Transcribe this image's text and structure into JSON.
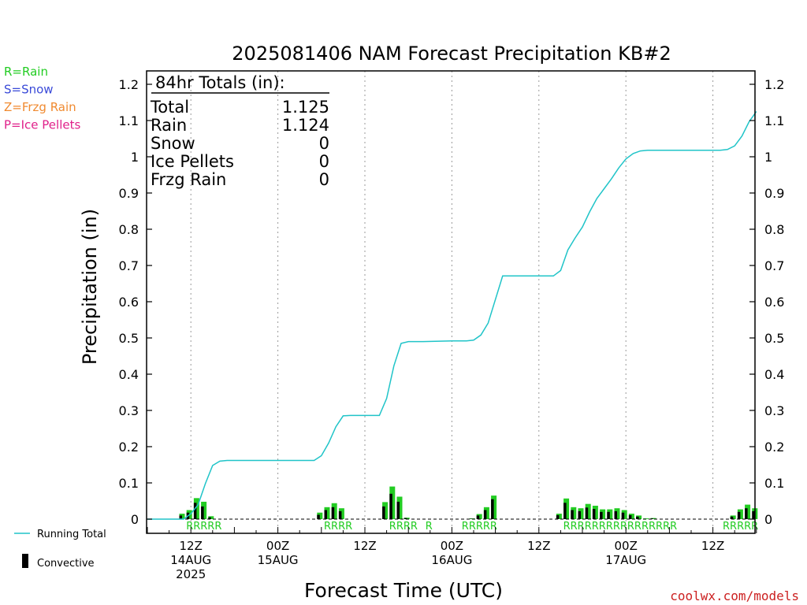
{
  "chart_data": {
    "type": "bar",
    "title": "2025081406 NAM Forecast Precipitation KB#2",
    "xlabel": "Forecast Time (UTC)",
    "ylabel": "Precipitation (in)",
    "ylim": [
      0,
      1.25
    ],
    "y_ticks": [
      0,
      0.1,
      0.2,
      0.3,
      0.4,
      0.5,
      0.6,
      0.7,
      0.8,
      0.9,
      1,
      1.1,
      1.2
    ],
    "y_tick_labels": [
      "0",
      "0.1",
      "0.2",
      "0.3",
      "0.4",
      "0.5",
      "0.6",
      "0.7",
      "0.8",
      "0.9",
      "1",
      "1.1",
      "1.2"
    ],
    "xlim_hours": [
      0,
      84
    ],
    "x_ticks": [
      {
        "hour": 6,
        "line1": "12Z",
        "line2": "14AUG",
        "line3": "2025"
      },
      {
        "hour": 18,
        "line1": "00Z",
        "line2": "15AUG",
        "line3": ""
      },
      {
        "hour": 30,
        "line1": "12Z",
        "line2": "",
        "line3": ""
      },
      {
        "hour": 42,
        "line1": "00Z",
        "line2": "16AUG",
        "line3": ""
      },
      {
        "hour": 54,
        "line1": "12Z",
        "line2": "",
        "line3": ""
      },
      {
        "hour": 66,
        "line1": "00Z",
        "line2": "17AUG",
        "line3": ""
      },
      {
        "hour": 78,
        "line1": "12Z",
        "line2": "",
        "line3": ""
      }
    ],
    "grid": "vertical dotted at 12-hour intervals",
    "precip_type_labels": [
      {
        "hour": 6,
        "text": "RRRRR"
      },
      {
        "hour": 25,
        "text": "RRRR"
      },
      {
        "hour": 34,
        "text": "RRRR"
      },
      {
        "hour": 39,
        "text": "R"
      },
      {
        "hour": 44,
        "text": "RRRRR"
      },
      {
        "hour": 58,
        "text": "RRRRRRRRRRRRRRRR"
      },
      {
        "hour": 80,
        "text": "RRRRR"
      }
    ],
    "bar_hours": [
      5,
      6,
      7,
      8,
      9,
      24,
      25,
      26,
      27,
      33,
      34,
      35,
      36,
      45,
      46,
      47,
      48,
      57,
      58,
      59,
      60,
      61,
      62,
      63,
      64,
      65,
      66,
      67,
      68,
      69,
      70,
      81,
      82,
      83,
      84
    ],
    "total_bars": [
      0.015,
      0.025,
      0.058,
      0.048,
      0.008,
      0.018,
      0.033,
      0.044,
      0.03,
      0.047,
      0.09,
      0.062,
      0.004,
      0.002,
      0.014,
      0.033,
      0.065,
      0.015,
      0.057,
      0.033,
      0.03,
      0.042,
      0.037,
      0.027,
      0.027,
      0.03,
      0.025,
      0.015,
      0.01,
      0.002,
      0.003,
      0.01,
      0.027,
      0.04,
      0.03
    ],
    "convective_bars": [
      0.01,
      0.018,
      0.045,
      0.035,
      0.005,
      0.012,
      0.025,
      0.033,
      0.022,
      0.035,
      0.07,
      0.048,
      0.003,
      0.001,
      0.01,
      0.025,
      0.055,
      0.011,
      0.045,
      0.025,
      0.022,
      0.032,
      0.028,
      0.02,
      0.02,
      0.022,
      0.018,
      0.011,
      0.007,
      0.001,
      0.002,
      0.007,
      0.02,
      0.03,
      0.022
    ],
    "running_total": {
      "hours": [
        0,
        1,
        2,
        3,
        4,
        5,
        6,
        7,
        8,
        9,
        10,
        11,
        12,
        23,
        24,
        25,
        26,
        27,
        28,
        29,
        30,
        31,
        32,
        33,
        34,
        35,
        36,
        37,
        38,
        42,
        44,
        45,
        46,
        47,
        48,
        49,
        50,
        51,
        52,
        53,
        54,
        55,
        56,
        57,
        58,
        59,
        60,
        61,
        62,
        63,
        64,
        65,
        66,
        67,
        68,
        69,
        70,
        76,
        77,
        78,
        79,
        80,
        81,
        82,
        83,
        84
      ],
      "values": [
        0,
        0,
        0,
        0,
        0,
        0,
        0.015,
        0.04,
        0.098,
        0.148,
        0.16,
        0.162,
        0.162,
        0.162,
        0.175,
        0.21,
        0.255,
        0.285,
        0.286,
        0.286,
        0.286,
        0.286,
        0.286,
        0.333,
        0.423,
        0.485,
        0.49,
        0.49,
        0.49,
        0.492,
        0.492,
        0.494,
        0.508,
        0.541,
        0.606,
        0.671,
        0.671,
        0.671,
        0.671,
        0.671,
        0.671,
        0.671,
        0.671,
        0.686,
        0.743,
        0.776,
        0.806,
        0.848,
        0.885,
        0.912,
        0.939,
        0.969,
        0.994,
        1.009,
        1.016,
        1.018,
        1.018,
        1.018,
        1.018,
        1.018,
        1.018,
        1.02,
        1.03,
        1.057,
        1.097,
        1.125
      ]
    },
    "totals_box": {
      "header": "84hr Totals (in):",
      "rows": [
        {
          "label": "Total",
          "value": "1.125"
        },
        {
          "label": "Rain",
          "value": "1.124"
        },
        {
          "label": "Snow",
          "value": "0"
        },
        {
          "label": "Ice Pellets",
          "value": "0"
        },
        {
          "label": "Frzg Rain",
          "value": "0"
        }
      ]
    },
    "type_legend": [
      {
        "text": "R=Rain",
        "color": "#22cc22"
      },
      {
        "text": "S=Snow",
        "color": "#3a4ad8"
      },
      {
        "text": "Z=Frzg Rain",
        "color": "#f08a30"
      },
      {
        "text": "P=Ice Pellets",
        "color": "#e0208a"
      }
    ],
    "series_legend": [
      {
        "name": "Running Total",
        "color": "#20c4c8"
      },
      {
        "name": "Convective",
        "color": "#000000"
      }
    ],
    "colors": {
      "total_bar": "#22cc22",
      "convective_bar": "#000000",
      "running_total": "#20c4c8",
      "type_label": "#22cc22"
    },
    "credit": "coolwx.com/models"
  }
}
